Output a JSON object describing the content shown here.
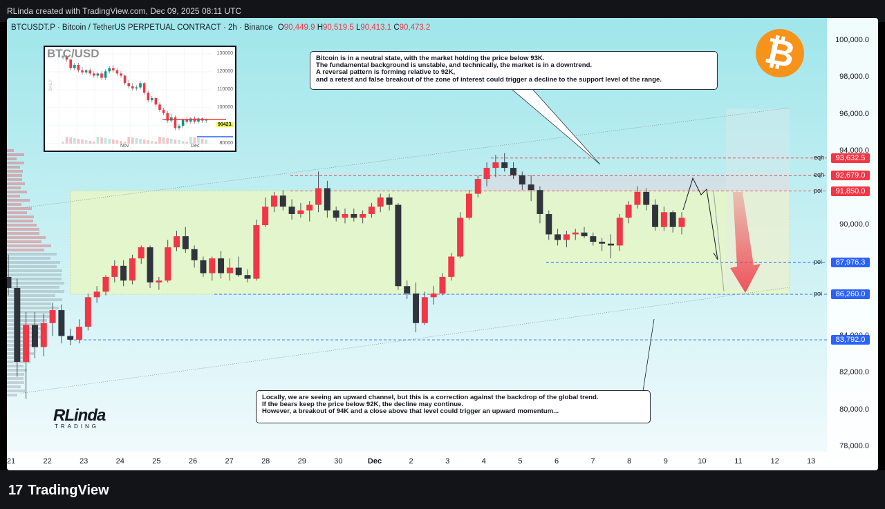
{
  "top_bar": {
    "text": "RLinda created with TradingView.com, Dec 09, 2025 08:11 UTC"
  },
  "header": {
    "symbol": "BTCUSDT.P · Bitcoin / TetherUS PERPETUAL CONTRACT · 2h · Binance",
    "o_label": "O",
    "o": "90,449.9",
    "h_label": "H",
    "h": "90,519.5",
    "l_label": "L",
    "l": "90,413.1",
    "c_label": "C",
    "c": "90,473.2"
  },
  "inset": {
    "title": "BTC/USD",
    "side_label": "DAILY",
    "yticks": [
      "130000",
      "120000",
      "110000",
      "100000",
      "90000",
      "80000"
    ],
    "xticks": [
      "Nov",
      "Dec"
    ],
    "last_price": "90423.",
    "candles": [
      {
        "o": 87,
        "h": 89,
        "c": 88
      },
      {
        "o": 88,
        "h": 89,
        "c": 85
      },
      {
        "o": 85,
        "h": 86,
        "c": 77
      },
      {
        "o": 77,
        "h": 82,
        "c": 80
      },
      {
        "o": 80,
        "h": 82,
        "c": 75
      },
      {
        "o": 75,
        "h": 78,
        "c": 73
      },
      {
        "o": 73,
        "h": 76,
        "c": 75
      },
      {
        "o": 75,
        "h": 77,
        "c": 72
      },
      {
        "o": 72,
        "h": 74,
        "c": 70
      },
      {
        "o": 70,
        "h": 73,
        "c": 72
      },
      {
        "o": 72,
        "h": 74,
        "c": 68
      },
      {
        "o": 68,
        "h": 76,
        "c": 74
      },
      {
        "o": 74,
        "h": 79,
        "c": 77
      },
      {
        "o": 77,
        "h": 80,
        "c": 75
      },
      {
        "o": 75,
        "h": 77,
        "c": 72
      },
      {
        "o": 72,
        "h": 74,
        "c": 70
      },
      {
        "o": 70,
        "h": 71,
        "c": 63
      },
      {
        "o": 63,
        "h": 66,
        "c": 60
      },
      {
        "o": 60,
        "h": 63,
        "c": 58
      },
      {
        "o": 58,
        "h": 61,
        "c": 59
      },
      {
        "o": 59,
        "h": 65,
        "c": 63
      },
      {
        "o": 63,
        "h": 64,
        "c": 54
      },
      {
        "o": 54,
        "h": 56,
        "c": 47
      },
      {
        "o": 47,
        "h": 51,
        "c": 49
      },
      {
        "o": 49,
        "h": 50,
        "c": 43
      },
      {
        "o": 43,
        "h": 45,
        "c": 38
      },
      {
        "o": 38,
        "h": 40,
        "c": 35
      },
      {
        "o": 35,
        "h": 37,
        "c": 28
      },
      {
        "o": 28,
        "h": 34,
        "c": 31
      },
      {
        "o": 31,
        "h": 33,
        "c": 21
      },
      {
        "o": 21,
        "h": 25,
        "c": 23
      },
      {
        "o": 23,
        "h": 30,
        "c": 29
      },
      {
        "o": 29,
        "h": 31,
        "c": 27
      },
      {
        "o": 27,
        "h": 31,
        "c": 30
      },
      {
        "o": 30,
        "h": 32,
        "c": 27
      },
      {
        "o": 27,
        "h": 31,
        "c": 30
      },
      {
        "o": 30,
        "h": 31,
        "c": 28
      },
      {
        "o": 28,
        "h": 30,
        "c": 29
      }
    ]
  },
  "notes": {
    "top": "Bitcoin is in a neutral state, with the market holding the price below 93K.\nThe fundamental background is unstable, and technically, the market is in a downtrend.\nA reversal pattern is forming relative to 92K,\nand a retest and false breakout of the zone of interest could trigger a decline to the support level of the range.",
    "bottom": "Locally, we are seeing an upward channel, but this is a correction against the backdrop of the global trend.\nIf the bears keep the price below 92K, the decline may continue.\nHowever, a breakout of 94K and a close above that level could trigger an upward momentum..."
  },
  "btc_logo": "₿",
  "brand": {
    "name": "RLinda",
    "sub": "TRADING"
  },
  "levels": [
    {
      "tag": "eqh",
      "price": 93632.5,
      "text": "93,632.5",
      "color": "#f23645"
    },
    {
      "tag": "eqh",
      "price": 92679.0,
      "text": "92,679.0",
      "color": "#f23645"
    },
    {
      "tag": "poi",
      "price": 91850.0,
      "text": "91,850.0",
      "color": "#f23645"
    },
    {
      "tag": "poi",
      "price": 87976.3,
      "text": "87,976.3",
      "color": "#2962ff"
    },
    {
      "tag": "poi",
      "price": 86260.0,
      "text": "86,260.0",
      "color": "#2962ff"
    },
    {
      "tag": "",
      "price": 83792.0,
      "text": "83,792.0",
      "color": "#2962ff"
    }
  ],
  "bottom_bar": {
    "logo_mark": "17",
    "logo_text": "TradingView"
  },
  "colors": {
    "up": "#089981",
    "down": "#f23645",
    "zone": "#e8f7c6",
    "bg_top": "#9fe6ea",
    "bg_bottom": "#f4fbfd"
  },
  "chart_data": {
    "type": "candlestick",
    "title": "BTCUSDT.P · Bitcoin / TetherUS PERPETUAL CONTRACT · 2h · Binance",
    "yticks": [
      "100,000.0",
      "98,000.0",
      "96,000.0",
      "94,000.0",
      "90,000.0",
      "84,000.0",
      "82,000.0",
      "80,000.0",
      "78,000.0"
    ],
    "ytick_values": [
      100000,
      98000,
      96000,
      94000,
      90000,
      84000,
      82000,
      80000,
      78000
    ],
    "xticks": [
      "21",
      "22",
      "23",
      "24",
      "25",
      "26",
      "27",
      "28",
      "29",
      "30",
      "Dec",
      "2",
      "3",
      "4",
      "5",
      "6",
      "7",
      "8",
      "9",
      "10",
      "11",
      "12",
      "13"
    ],
    "ylim": [
      77500,
      101500
    ],
    "zone": [
      86260,
      91850
    ],
    "channel": {
      "upper": [
        [
          20.8,
          91000
        ],
        [
          12.5,
          96300
        ]
      ],
      "lower": [
        [
          20.4,
          80900
        ],
        [
          12.35,
          86500
        ]
      ]
    },
    "ohlc": [
      [
        87200,
        88400,
        86200,
        86600
      ],
      [
        86600,
        87100,
        81800,
        82600
      ],
      [
        82600,
        85300,
        80600,
        84600
      ],
      [
        84600,
        85300,
        82800,
        83400
      ],
      [
        83400,
        85200,
        82900,
        84700
      ],
      [
        84700,
        85800,
        84000,
        85400
      ],
      [
        85400,
        85700,
        83600,
        84000
      ],
      [
        84000,
        84400,
        83500,
        83800
      ],
      [
        83800,
        84900,
        83600,
        84500
      ],
      [
        84500,
        86300,
        84300,
        86100
      ],
      [
        86100,
        86700,
        85800,
        86400
      ],
      [
        86400,
        87300,
        86200,
        87200
      ],
      [
        87200,
        88100,
        86900,
        87800
      ],
      [
        87800,
        88100,
        86700,
        87000
      ],
      [
        87000,
        88400,
        86800,
        88200
      ],
      [
        88200,
        88900,
        87900,
        88800
      ],
      [
        88800,
        88900,
        86600,
        86900
      ],
      [
        86900,
        87200,
        86500,
        87000
      ],
      [
        87000,
        89200,
        86900,
        88800
      ],
      [
        88800,
        89700,
        88600,
        89400
      ],
      [
        89400,
        89900,
        88500,
        88700
      ],
      [
        88700,
        88900,
        87700,
        88100
      ],
      [
        88100,
        88300,
        87200,
        87400
      ],
      [
        87400,
        88300,
        87000,
        88200
      ],
      [
        88200,
        88600,
        87100,
        87400
      ],
      [
        87400,
        88200,
        87000,
        87700
      ],
      [
        87700,
        88300,
        87200,
        87300
      ],
      [
        87300,
        87600,
        86900,
        87100
      ],
      [
        87100,
        90300,
        87000,
        90000
      ],
      [
        90000,
        91500,
        89900,
        91000
      ],
      [
        91000,
        91800,
        90700,
        91600
      ],
      [
        91600,
        91900,
        90800,
        91000
      ],
      [
        91000,
        91400,
        90300,
        90600
      ],
      [
        90600,
        91200,
        90400,
        90800
      ],
      [
        90800,
        91300,
        90200,
        91100
      ],
      [
        91100,
        92900,
        90700,
        92000
      ],
      [
        92000,
        92400,
        90400,
        90800
      ],
      [
        90800,
        91000,
        90200,
        90400
      ],
      [
        90400,
        90900,
        90100,
        90600
      ],
      [
        90600,
        90900,
        90200,
        90400
      ],
      [
        90400,
        90800,
        90100,
        90600
      ],
      [
        90600,
        91200,
        90400,
        91000
      ],
      [
        91000,
        91700,
        90700,
        91500
      ],
      [
        91500,
        91700,
        90800,
        91100
      ],
      [
        91100,
        91200,
        86500,
        86700
      ],
      [
        86700,
        87000,
        86000,
        86300
      ],
      [
        86300,
        86900,
        84200,
        84700
      ],
      [
        84700,
        86400,
        84600,
        86100
      ],
      [
        86100,
        86700,
        85700,
        86300
      ],
      [
        86300,
        87400,
        86200,
        87200
      ],
      [
        87200,
        88500,
        87000,
        88300
      ],
      [
        88300,
        90700,
        88200,
        90400
      ],
      [
        90400,
        91900,
        90300,
        91700
      ],
      [
        91700,
        92700,
        91500,
        92500
      ],
      [
        92500,
        93400,
        92100,
        93100
      ],
      [
        93100,
        93800,
        92600,
        93400
      ],
      [
        93400,
        93900,
        92900,
        93100
      ],
      [
        93100,
        93400,
        92500,
        92700
      ],
      [
        92700,
        92900,
        91900,
        92200
      ],
      [
        92200,
        92700,
        91300,
        91900
      ],
      [
        91900,
        92100,
        90100,
        90600
      ],
      [
        90600,
        90800,
        89200,
        89500
      ],
      [
        89500,
        89800,
        88900,
        89200
      ],
      [
        89200,
        89700,
        88800,
        89500
      ],
      [
        89500,
        89800,
        89200,
        89600
      ],
      [
        89600,
        89900,
        89300,
        89400
      ],
      [
        89400,
        89600,
        88900,
        89100
      ],
      [
        89100,
        89300,
        88600,
        89000
      ],
      [
        89000,
        89500,
        88200,
        88900
      ],
      [
        88900,
        90600,
        88600,
        90400
      ],
      [
        90400,
        91300,
        90100,
        91100
      ],
      [
        91100,
        92100,
        90900,
        91800
      ],
      [
        91800,
        92000,
        90800,
        91100
      ],
      [
        91100,
        91400,
        89700,
        89900
      ],
      [
        89900,
        91000,
        89700,
        90700
      ],
      [
        90700,
        90800,
        89600,
        89900
      ],
      [
        89900,
        90700,
        89500,
        90400
      ]
    ]
  }
}
